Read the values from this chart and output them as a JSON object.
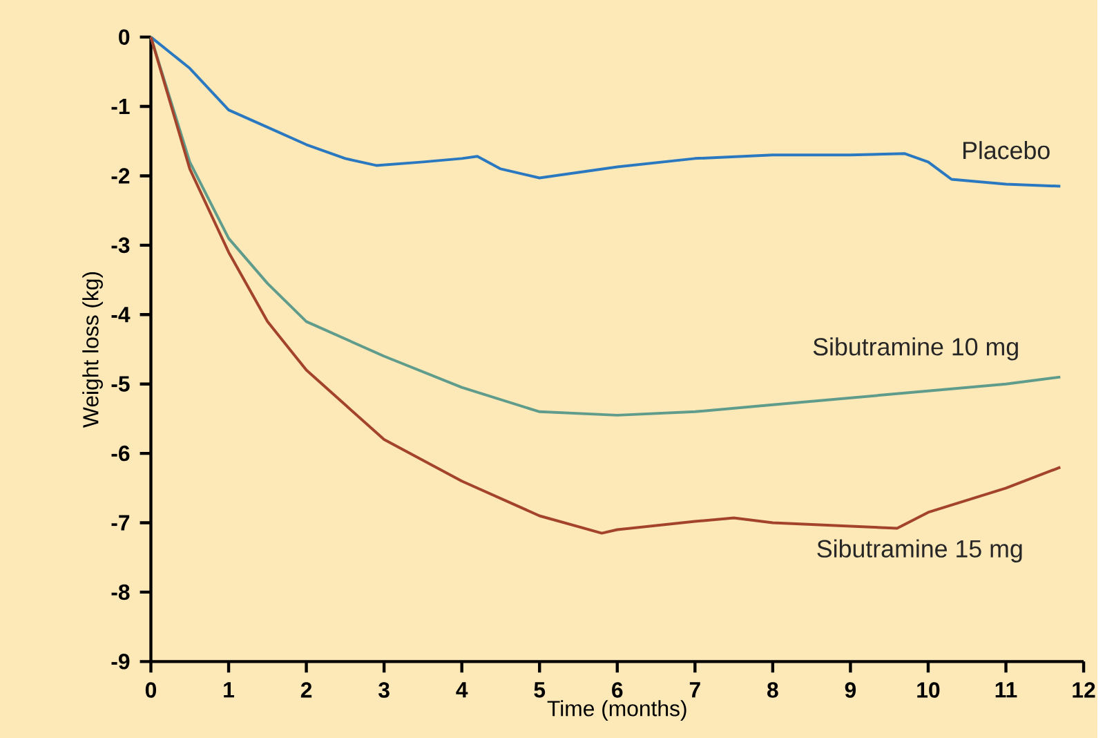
{
  "chart_data": {
    "type": "line",
    "xlabel": "Time (months)",
    "ylabel": "Weight loss (kg)",
    "xlim": [
      0,
      12
    ],
    "ylim": [
      -9,
      0
    ],
    "xticks": [
      0,
      1,
      2,
      3,
      4,
      5,
      6,
      7,
      8,
      9,
      10,
      11,
      12
    ],
    "yticks": [
      0,
      -1,
      -2,
      -3,
      -4,
      -5,
      -6,
      -7,
      -8,
      -9
    ],
    "marker": "none",
    "line_style": "solid",
    "series": [
      {
        "name": "Placebo",
        "color": "#2a78c0",
        "x": [
          0,
          0.5,
          1,
          1.5,
          2,
          2.5,
          2.9,
          3.5,
          4,
          4.2,
          4.5,
          5,
          5.5,
          6,
          7,
          8,
          9,
          9.7,
          10,
          10.3,
          11,
          11.7
        ],
        "values": [
          0,
          -0.45,
          -1.05,
          -1.3,
          -1.55,
          -1.75,
          -1.85,
          -1.8,
          -1.75,
          -1.72,
          -1.9,
          -2.03,
          -1.95,
          -1.87,
          -1.75,
          -1.7,
          -1.7,
          -1.68,
          -1.8,
          -2.05,
          -2.12,
          -2.15
        ]
      },
      {
        "name": "Sibutramine 10 mg",
        "color": "#5f9c8c",
        "x": [
          0,
          0.5,
          1,
          1.5,
          2,
          3,
          4,
          5,
          6,
          7,
          8,
          9,
          10,
          11,
          11.7
        ],
        "values": [
          0,
          -1.8,
          -2.9,
          -3.55,
          -4.1,
          -4.6,
          -5.05,
          -5.4,
          -5.45,
          -5.4,
          -5.3,
          -5.2,
          -5.1,
          -5.0,
          -4.9
        ]
      },
      {
        "name": "Sibutramine 15 mg",
        "color": "#a4432c",
        "x": [
          0,
          0.5,
          1,
          1.5,
          2,
          2.5,
          3,
          4,
          5,
          5.8,
          6,
          7,
          7.5,
          8,
          9,
          9.6,
          10,
          11,
          11.7
        ],
        "values": [
          0,
          -1.9,
          -3.1,
          -4.1,
          -4.8,
          -5.3,
          -5.8,
          -6.4,
          -6.9,
          -7.15,
          -7.1,
          -6.98,
          -6.93,
          -7.0,
          -7.05,
          -7.08,
          -6.85,
          -6.5,
          -6.2
        ]
      }
    ]
  }
}
